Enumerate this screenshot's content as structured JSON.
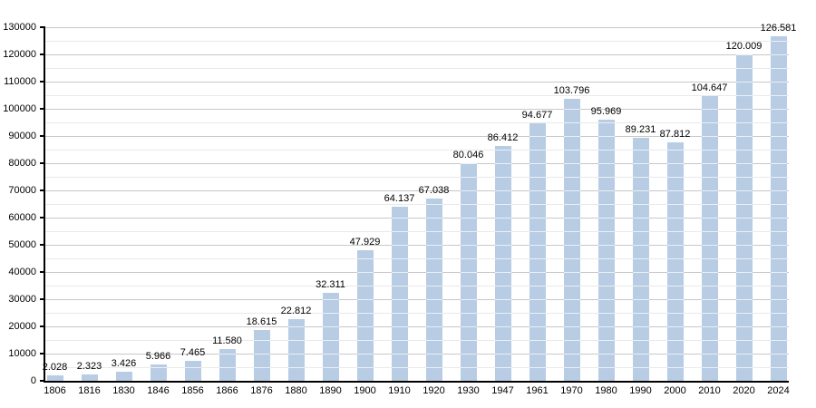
{
  "chart_data": {
    "type": "bar",
    "title": "",
    "xlabel": "",
    "ylabel": "",
    "categories": [
      "1806",
      "1816",
      "1830",
      "1846",
      "1856",
      "1866",
      "1876",
      "1880",
      "1890",
      "1900",
      "1910",
      "1920",
      "1930",
      "1947",
      "1961",
      "1970",
      "1980",
      "1990",
      "2000",
      "2010",
      "2020",
      "2024"
    ],
    "values": [
      2028,
      2323,
      3426,
      5966,
      7465,
      11580,
      18615,
      22812,
      32311,
      47929,
      64137,
      67038,
      80046,
      86412,
      94677,
      103796,
      95969,
      89231,
      87812,
      104647,
      120009,
      126581
    ],
    "value_labels": [
      "2.028",
      "2.323",
      "3.426",
      "5.966",
      "7.465",
      "11.580",
      "18.615",
      "22.812",
      "32.311",
      "47.929",
      "64.137",
      "67.038",
      "80.046",
      "86.412",
      "94.677",
      "103.796",
      "95.969",
      "89.231",
      "87.812",
      "104.647",
      "120.009",
      "126.581"
    ],
    "ylim": [
      0,
      130000
    ],
    "y_major_step": 10000,
    "y_minor_step": 5000,
    "y_tick_labels": [
      "0",
      "10000",
      "20000",
      "30000",
      "40000",
      "50000",
      "60000",
      "70000",
      "80000",
      "90000",
      "100000",
      "110000",
      "120000",
      "130000"
    ],
    "grid": true,
    "legend_position": "none",
    "colors": {
      "bar_fill": "#B8CCE4",
      "bar_gridline_overlay": "rgba(255,255,255,0.7)",
      "major_gridline": "#C8C8C8",
      "minor_gridline": "#E9E9E9",
      "axis_line": "#000000",
      "label_text": "#000000",
      "background": "#FFFFFF"
    }
  }
}
